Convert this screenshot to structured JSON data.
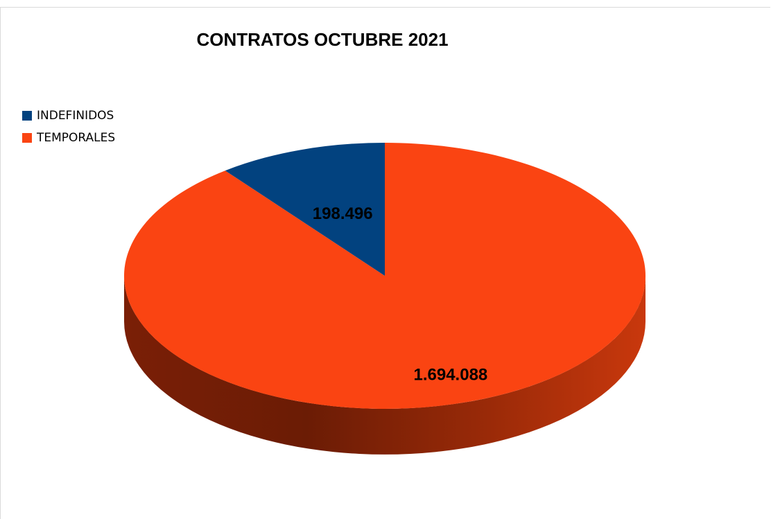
{
  "chart_data": {
    "type": "pie",
    "title": "CONTRATOS OCTUBRE 2021",
    "categories": [
      "INDEFINIDOS",
      "TEMPORALES"
    ],
    "values": [
      198496,
      1694088
    ],
    "data_labels": [
      "198.496",
      "1.694.088"
    ],
    "colors": [
      "#02427f",
      "#fa4412"
    ],
    "legend_position": "left",
    "style": "3d"
  }
}
